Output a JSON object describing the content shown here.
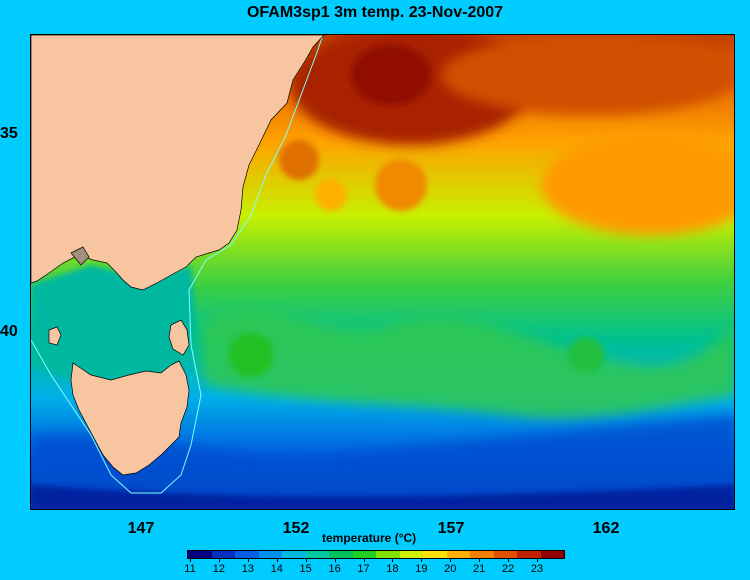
{
  "title": "OFAM3sp1 3m temp. 23-Nov-2007",
  "map": {
    "type": "heatmap",
    "variable": "temperature",
    "lon_ticks": [
      "147",
      "152",
      "157",
      "162"
    ],
    "lat_ticks": [
      "35",
      "40"
    ],
    "land_color": "#f7c59f",
    "coastline_color": "#000000",
    "shelf_contour_color": "#7fffff"
  },
  "colorbar": {
    "title": "temperature (°C)",
    "tick_labels": [
      "11",
      "12",
      "13",
      "14",
      "15",
      "16",
      "17",
      "18",
      "19",
      "20",
      "21",
      "22",
      "23"
    ],
    "colors": [
      "#000080",
      "#0030c0",
      "#0060e0",
      "#0090f0",
      "#00b8e0",
      "#00c8a0",
      "#00c060",
      "#20d020",
      "#80e000",
      "#d0f000",
      "#ffe000",
      "#ffb000",
      "#f08000",
      "#e05000",
      "#c02000",
      "#900000"
    ]
  }
}
